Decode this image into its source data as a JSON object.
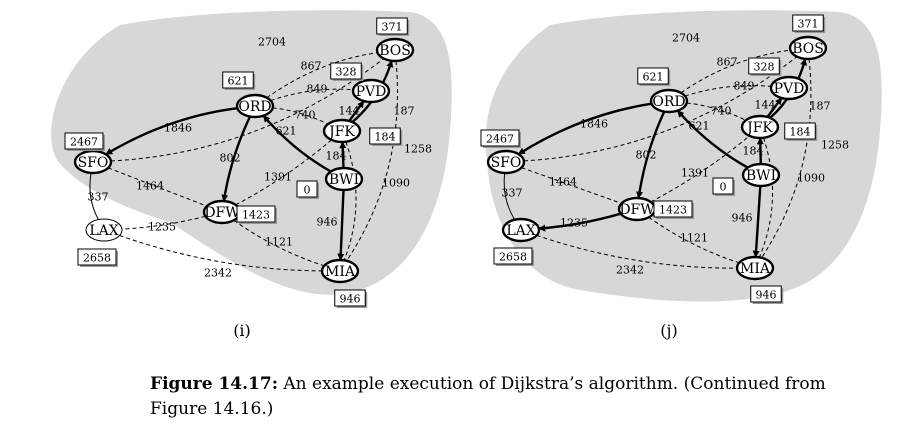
{
  "panels": [
    {
      "id": "i",
      "label": "(i)",
      "tree_edges": [
        "ORD-SFO",
        "ORD-DFW",
        "BWI-ORD",
        "BWI-JFK",
        "JFK-BOS",
        "JFK-PVD",
        "BWI-MIA"
      ],
      "light_nodes": [
        "LAX"
      ],
      "distances": {
        "BOS": "371",
        "ORD": "621",
        "PVD": "328",
        "SFO": "2467",
        "JFK": "184",
        "BWI": "0",
        "DFW": "1423",
        "LAX": "2658",
        "MIA": "946"
      }
    },
    {
      "id": "j",
      "label": "(j)",
      "tree_edges": [
        "ORD-SFO",
        "ORD-DFW",
        "BWI-ORD",
        "BWI-JFK",
        "JFK-BOS",
        "JFK-PVD",
        "BWI-MIA",
        "DFW-LAX"
      ],
      "light_nodes": [],
      "distances": {
        "BOS": "371",
        "ORD": "621",
        "PVD": "328",
        "SFO": "2467",
        "JFK": "184",
        "BWI": "0",
        "DFW": "1423",
        "LAX": "2658",
        "MIA": "946"
      }
    }
  ],
  "nodes": [
    "SFO",
    "LAX",
    "ORD",
    "DFW",
    "BOS",
    "PVD",
    "JFK",
    "BWI",
    "MIA"
  ],
  "edges": [
    {
      "id": "SFO-BOS",
      "weight": "2704"
    },
    {
      "id": "ORD-BOS",
      "weight": "867"
    },
    {
      "id": "ORD-PVD",
      "weight": "849"
    },
    {
      "id": "ORD-JFK",
      "weight": "740"
    },
    {
      "id": "ORD-SFO",
      "weight": "1846"
    },
    {
      "id": "ORD-DFW",
      "weight": "802"
    },
    {
      "id": "BWI-ORD",
      "weight": "621"
    },
    {
      "id": "JFK-PVD",
      "weight": "144"
    },
    {
      "id": "JFK-BOS",
      "weight": "187"
    },
    {
      "id": "BWI-JFK",
      "weight": "184"
    },
    {
      "id": "SFO-DFW",
      "weight": "1464"
    },
    {
      "id": "DFW-JFK",
      "weight": "1391"
    },
    {
      "id": "SFO-LAX",
      "weight": "337"
    },
    {
      "id": "DFW-LAX",
      "weight": "1235"
    },
    {
      "id": "BOS-MIA",
      "weight": "1258"
    },
    {
      "id": "JFK-MIA",
      "weight": "1090"
    },
    {
      "id": "BWI-MIA",
      "weight": "946"
    },
    {
      "id": "DFW-MIA",
      "weight": "1121"
    },
    {
      "id": "LAX-MIA",
      "weight": "2342"
    }
  ],
  "caption": {
    "bold": "Figure 14.17:",
    "text": " An example execution of Dijkstra’s algorithm. (Continued from Figure 14.16.)"
  }
}
